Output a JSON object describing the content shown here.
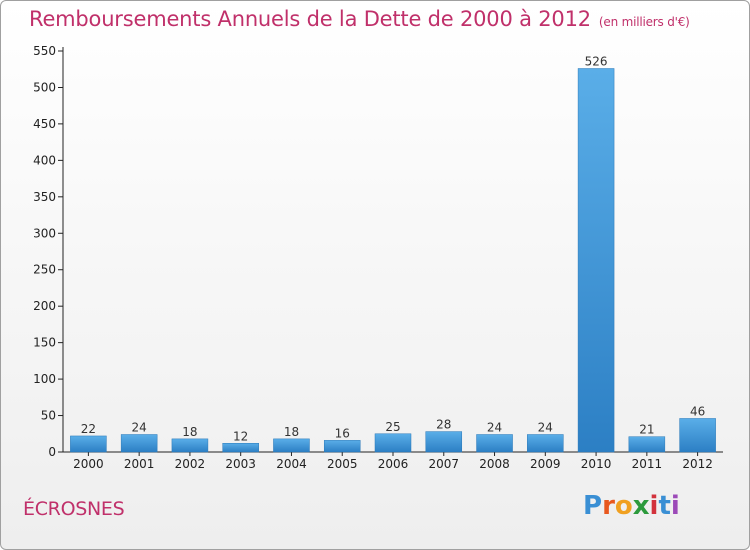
{
  "header": {
    "title": "Remboursements Annuels de la Dette de 2000 à 2012",
    "unit": "(en milliers d'€)"
  },
  "footer": {
    "commune": "ÉCROSNES",
    "logo_letters": [
      "P",
      "r",
      "o",
      "x",
      "i",
      "t",
      "i"
    ]
  },
  "colors": {
    "title": "#c0306a",
    "bar_top": "#5aaee8",
    "bar_bottom": "#2c7fc4",
    "logo": [
      "#3a8fd4",
      "#e8581e",
      "#f0a020",
      "#2c9a3c",
      "#d2323c",
      "#3a8fd4",
      "#9c4ab8"
    ]
  },
  "chart_data": {
    "type": "bar",
    "title": "Remboursements Annuels de la Dette de 2000 à 2012",
    "subtitle": "(en milliers d'€)",
    "categories": [
      "2000",
      "2001",
      "2002",
      "2003",
      "2004",
      "2005",
      "2006",
      "2007",
      "2008",
      "2009",
      "2010",
      "2011",
      "2012"
    ],
    "values": [
      22,
      24,
      18,
      12,
      18,
      16,
      25,
      28,
      24,
      24,
      526,
      21,
      46
    ],
    "ylim": [
      0,
      550
    ],
    "yticks": [
      0,
      50,
      100,
      150,
      200,
      250,
      300,
      350,
      400,
      450,
      500,
      550
    ],
    "grid": false,
    "legend": "none"
  }
}
